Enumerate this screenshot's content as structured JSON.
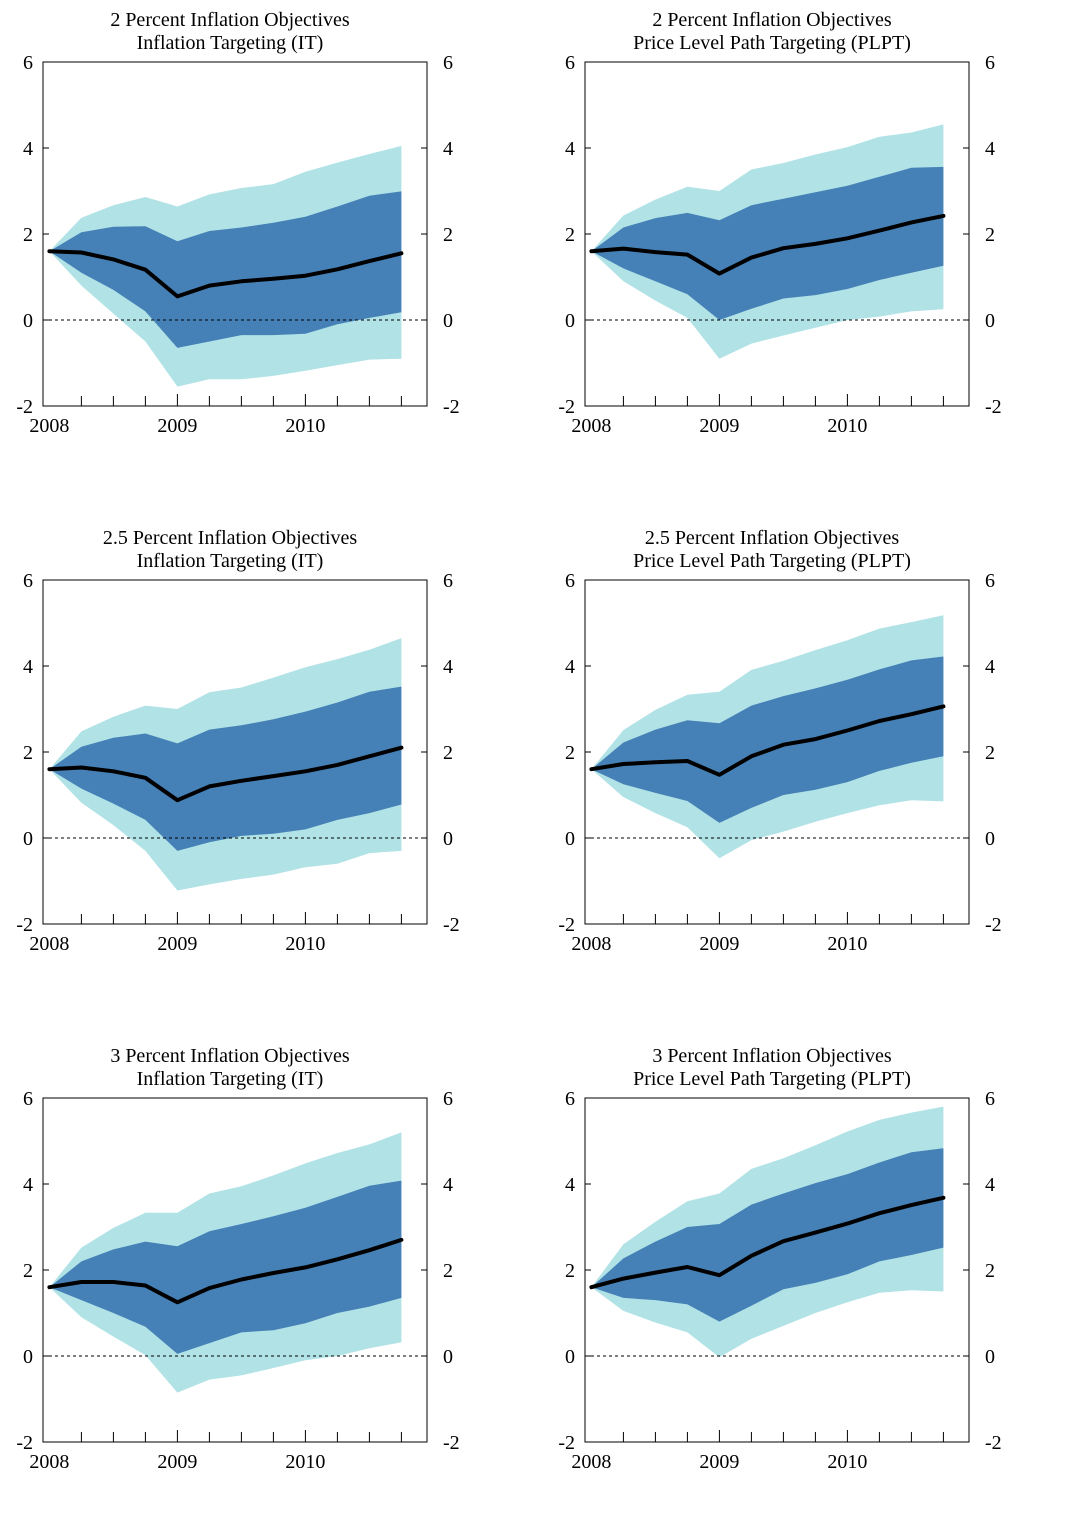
{
  "colors": {
    "outer_band": "#b0e2e6",
    "inner_band": "#4581b6",
    "median_line": "#000000",
    "frame": "#000000"
  },
  "chart_data": [
    {
      "type": "area",
      "title_line1": "2 Percent Inflation Objectives",
      "title_line2": "Inflation Targeting (IT)",
      "x_ticks": [
        "2008",
        "2009",
        "2010"
      ],
      "y_ticks": [
        "-2",
        "0",
        "2",
        "4",
        "6"
      ],
      "ylim": [
        -2,
        6
      ],
      "x": [
        2008.0,
        2008.25,
        2008.5,
        2008.75,
        2009.0,
        2009.25,
        2009.5,
        2009.75,
        2010.0,
        2010.25,
        2010.5,
        2010.75
      ],
      "median": [
        1.6,
        1.57,
        1.41,
        1.17,
        0.55,
        0.8,
        0.9,
        0.96,
        1.03,
        1.18,
        1.37,
        1.55
      ],
      "inner_upper": [
        1.6,
        2.04,
        2.17,
        2.18,
        1.83,
        2.07,
        2.15,
        2.26,
        2.4,
        2.64,
        2.89,
        2.99
      ],
      "inner_lower": [
        1.6,
        1.1,
        0.7,
        0.2,
        -0.65,
        -0.5,
        -0.35,
        -0.35,
        -0.32,
        -0.1,
        0.05,
        0.18
      ],
      "outer_upper": [
        1.6,
        2.38,
        2.67,
        2.86,
        2.64,
        2.92,
        3.07,
        3.16,
        3.45,
        3.66,
        3.86,
        4.05
      ],
      "outer_lower": [
        1.6,
        0.8,
        0.15,
        -0.5,
        -1.55,
        -1.38,
        -1.38,
        -1.3,
        -1.18,
        -1.05,
        -0.92,
        -0.9
      ]
    },
    {
      "type": "area",
      "title_line1": "2 Percent Inflation Objectives",
      "title_line2": "Price Level Path Targeting (PLPT)",
      "x_ticks": [
        "2008",
        "2009",
        "2010"
      ],
      "y_ticks": [
        "-2",
        "0",
        "2",
        "4",
        "6"
      ],
      "ylim": [
        -2,
        6
      ],
      "x": [
        2008.0,
        2008.25,
        2008.5,
        2008.75,
        2009.0,
        2009.25,
        2009.5,
        2009.75,
        2010.0,
        2010.25,
        2010.5,
        2010.75
      ],
      "median": [
        1.6,
        1.66,
        1.58,
        1.52,
        1.08,
        1.45,
        1.67,
        1.77,
        1.9,
        2.08,
        2.27,
        2.42
      ],
      "inner_upper": [
        1.6,
        2.15,
        2.37,
        2.49,
        2.32,
        2.67,
        2.82,
        2.97,
        3.12,
        3.33,
        3.54,
        3.56
      ],
      "inner_lower": [
        1.6,
        1.2,
        0.9,
        0.6,
        0.0,
        0.26,
        0.5,
        0.58,
        0.72,
        0.93,
        1.1,
        1.26
      ],
      "outer_upper": [
        1.6,
        2.43,
        2.8,
        3.1,
        3.0,
        3.5,
        3.65,
        3.85,
        4.02,
        4.26,
        4.36,
        4.55
      ],
      "outer_lower": [
        1.6,
        0.9,
        0.45,
        0.05,
        -0.9,
        -0.55,
        -0.36,
        -0.18,
        0.0,
        0.08,
        0.2,
        0.25
      ]
    },
    {
      "type": "area",
      "title_line1": "2.5 Percent Inflation Objectives",
      "title_line2": "Inflation Targeting (IT)",
      "x_ticks": [
        "2008",
        "2009",
        "2010"
      ],
      "y_ticks": [
        "-2",
        "0",
        "2",
        "4",
        "6"
      ],
      "ylim": [
        -2,
        6
      ],
      "x": [
        2008.0,
        2008.25,
        2008.5,
        2008.75,
        2009.0,
        2009.25,
        2009.5,
        2009.75,
        2010.0,
        2010.25,
        2010.5,
        2010.75
      ],
      "median": [
        1.6,
        1.64,
        1.55,
        1.4,
        0.88,
        1.2,
        1.33,
        1.44,
        1.55,
        1.7,
        1.9,
        2.1
      ],
      "inner_upper": [
        1.6,
        2.12,
        2.33,
        2.43,
        2.2,
        2.52,
        2.62,
        2.76,
        2.94,
        3.15,
        3.4,
        3.52
      ],
      "inner_lower": [
        1.6,
        1.15,
        0.8,
        0.42,
        -0.3,
        -0.1,
        0.05,
        0.1,
        0.2,
        0.42,
        0.58,
        0.78
      ],
      "outer_upper": [
        1.6,
        2.48,
        2.82,
        3.08,
        3.0,
        3.39,
        3.5,
        3.73,
        3.97,
        4.16,
        4.38,
        4.65
      ],
      "outer_lower": [
        1.6,
        0.82,
        0.3,
        -0.3,
        -1.22,
        -1.08,
        -0.95,
        -0.85,
        -0.68,
        -0.6,
        -0.35,
        -0.3
      ]
    },
    {
      "type": "area",
      "title_line1": "2.5 Percent Inflation Objectives",
      "title_line2": "Price Level Path Targeting (PLPT)",
      "x_ticks": [
        "2008",
        "2009",
        "2010"
      ],
      "y_ticks": [
        "-2",
        "0",
        "2",
        "4",
        "6"
      ],
      "ylim": [
        -2,
        6
      ],
      "x": [
        2008.0,
        2008.25,
        2008.5,
        2008.75,
        2009.0,
        2009.25,
        2009.5,
        2009.75,
        2010.0,
        2010.25,
        2010.5,
        2010.75
      ],
      "median": [
        1.6,
        1.72,
        1.76,
        1.79,
        1.47,
        1.9,
        2.17,
        2.3,
        2.5,
        2.72,
        2.88,
        3.06
      ],
      "inner_upper": [
        1.6,
        2.22,
        2.52,
        2.74,
        2.67,
        3.08,
        3.3,
        3.48,
        3.68,
        3.92,
        4.13,
        4.22
      ],
      "inner_lower": [
        1.6,
        1.25,
        1.05,
        0.86,
        0.35,
        0.7,
        1.0,
        1.12,
        1.3,
        1.56,
        1.75,
        1.9
      ],
      "outer_upper": [
        1.6,
        2.51,
        2.98,
        3.33,
        3.4,
        3.91,
        4.12,
        4.37,
        4.6,
        4.87,
        5.02,
        5.18
      ],
      "outer_lower": [
        1.6,
        0.95,
        0.58,
        0.25,
        -0.47,
        -0.05,
        0.15,
        0.38,
        0.58,
        0.76,
        0.88,
        0.85
      ]
    },
    {
      "type": "area",
      "title_line1": "3 Percent Inflation Objectives",
      "title_line2": "Inflation Targeting (IT)",
      "x_ticks": [
        "2008",
        "2009",
        "2010"
      ],
      "y_ticks": [
        "-2",
        "0",
        "2",
        "4",
        "6"
      ],
      "ylim": [
        -2,
        6
      ],
      "x": [
        2008.0,
        2008.25,
        2008.5,
        2008.75,
        2009.0,
        2009.25,
        2009.5,
        2009.75,
        2010.0,
        2010.25,
        2010.5,
        2010.75
      ],
      "median": [
        1.6,
        1.72,
        1.72,
        1.64,
        1.25,
        1.58,
        1.78,
        1.93,
        2.06,
        2.25,
        2.46,
        2.7
      ],
      "inner_upper": [
        1.6,
        2.2,
        2.48,
        2.66,
        2.55,
        2.9,
        3.07,
        3.25,
        3.45,
        3.7,
        3.96,
        4.08
      ],
      "inner_lower": [
        1.6,
        1.3,
        1.0,
        0.68,
        0.05,
        0.3,
        0.55,
        0.6,
        0.76,
        1.0,
        1.15,
        1.35
      ],
      "outer_upper": [
        1.6,
        2.52,
        2.98,
        3.33,
        3.33,
        3.78,
        3.95,
        4.2,
        4.48,
        4.72,
        4.92,
        5.2
      ],
      "outer_lower": [
        1.6,
        0.9,
        0.45,
        0.02,
        -0.85,
        -0.55,
        -0.45,
        -0.28,
        -0.1,
        0.0,
        0.18,
        0.32
      ]
    },
    {
      "type": "area",
      "title_line1": "3 Percent Inflation Objectives",
      "title_line2": "Price Level Path Targeting (PLPT)",
      "x_ticks": [
        "2008",
        "2009",
        "2010"
      ],
      "y_ticks": [
        "-2",
        "0",
        "2",
        "4",
        "6"
      ],
      "ylim": [
        -2,
        6
      ],
      "x": [
        2008.0,
        2008.25,
        2008.5,
        2008.75,
        2009.0,
        2009.25,
        2009.5,
        2009.75,
        2010.0,
        2010.25,
        2010.5,
        2010.75
      ],
      "median": [
        1.6,
        1.8,
        1.94,
        2.07,
        1.88,
        2.33,
        2.67,
        2.87,
        3.08,
        3.32,
        3.51,
        3.68
      ],
      "inner_upper": [
        1.6,
        2.27,
        2.66,
        3.0,
        3.07,
        3.52,
        3.78,
        4.02,
        4.23,
        4.5,
        4.74,
        4.83
      ],
      "inner_lower": [
        1.6,
        1.35,
        1.3,
        1.2,
        0.8,
        1.17,
        1.55,
        1.7,
        1.9,
        2.2,
        2.35,
        2.52
      ],
      "outer_upper": [
        1.6,
        2.6,
        3.12,
        3.6,
        3.78,
        4.35,
        4.6,
        4.9,
        5.22,
        5.49,
        5.66,
        5.8
      ],
      "outer_lower": [
        1.6,
        1.05,
        0.78,
        0.55,
        -0.03,
        0.4,
        0.7,
        1.0,
        1.25,
        1.47,
        1.53,
        1.5
      ]
    }
  ]
}
